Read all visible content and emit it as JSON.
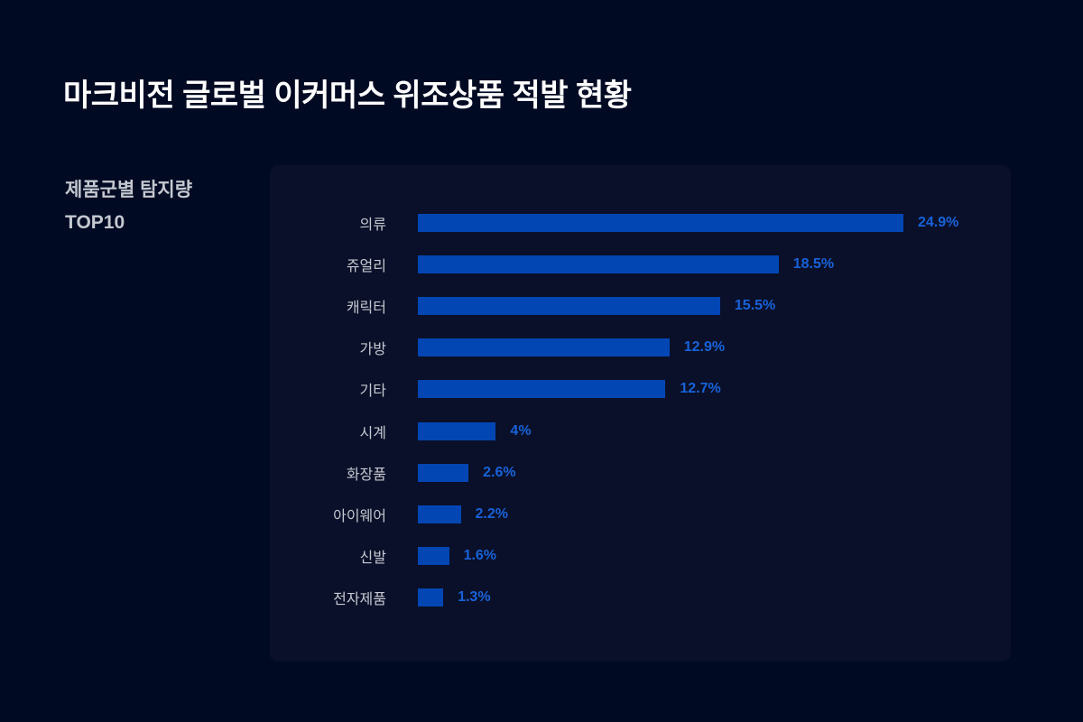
{
  "header": {
    "title": "마크비전 글로벌 이커머스 위조상품 적발 현황"
  },
  "sidebar": {
    "subtitle_line1": "제품군별 탐지량",
    "subtitle_line2": "TOP10"
  },
  "colors": {
    "background": "#000a23",
    "card": "#0a1029",
    "bar": "#0246b4",
    "value_text": "#1762d9",
    "label_text": "#c5c8d0"
  },
  "chart_data": {
    "type": "bar",
    "orientation": "horizontal",
    "title": "제품군별 탐지량 TOP10",
    "xlabel": "",
    "ylabel": "",
    "unit": "%",
    "grid": false,
    "legend": null,
    "categories": [
      "의류",
      "쥬얼리",
      "캐릭터",
      "가방",
      "기타",
      "시계",
      "화장품",
      "아이웨어",
      "신발",
      "전자제품"
    ],
    "values": [
      24.9,
      18.5,
      15.5,
      12.9,
      12.7,
      4,
      2.6,
      2.2,
      1.6,
      1.3
    ],
    "value_labels": [
      "24.9%",
      "18.5%",
      "15.5%",
      "12.9%",
      "12.7%",
      "4%",
      "2.6%",
      "2.2%",
      "1.6%",
      "1.3%"
    ],
    "xlim": [
      0,
      25
    ]
  }
}
